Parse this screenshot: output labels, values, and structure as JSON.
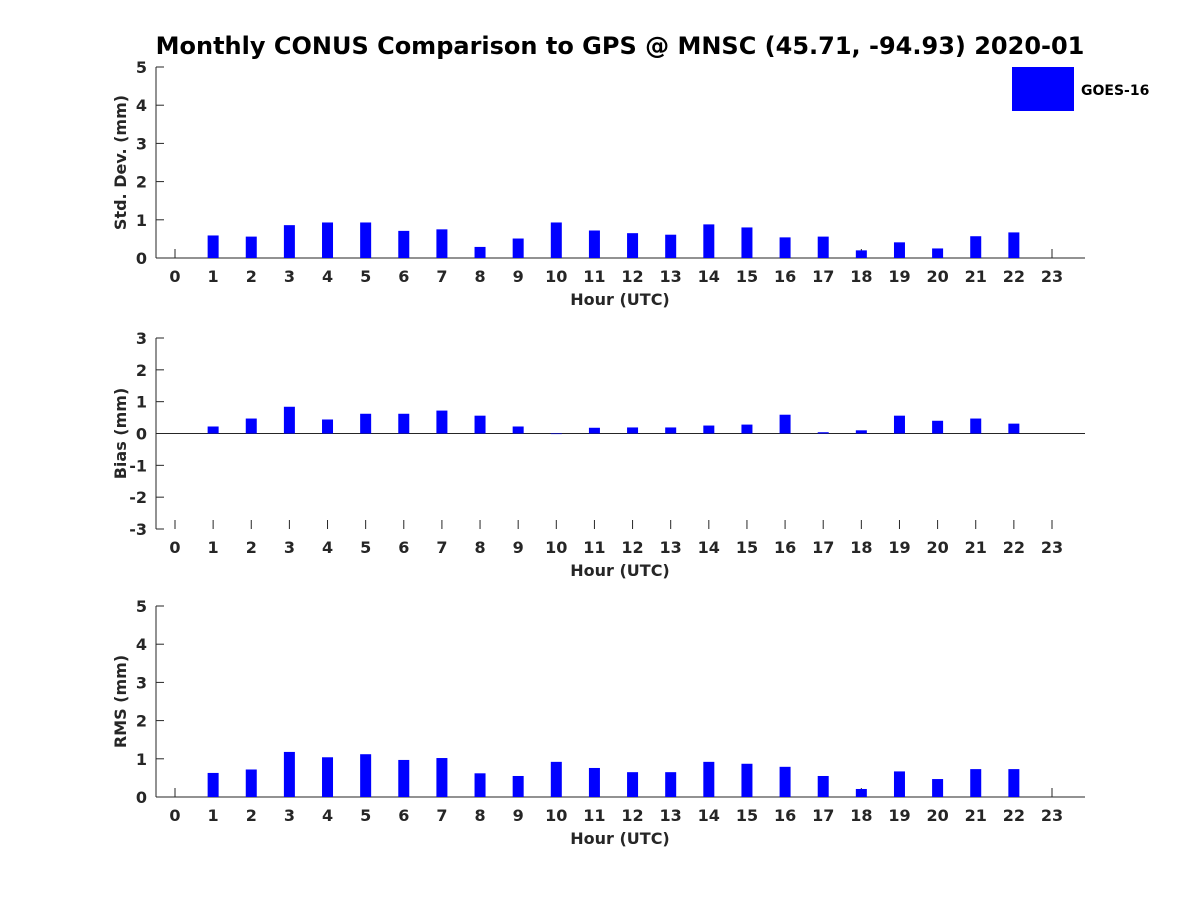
{
  "title": "Monthly CONUS Comparison to GPS @ MNSC (45.71, -94.93) 2020-01",
  "legend": {
    "label": "GOES-16",
    "color": "#0000ff"
  },
  "chart_data": [
    {
      "type": "bar",
      "name": "std",
      "series_name": "GOES-16",
      "xlabel": "Hour (UTC)",
      "ylabel": "Std. Dev. (mm)",
      "ylim": [
        0,
        5
      ],
      "yticks": [
        0,
        1,
        2,
        3,
        4,
        5
      ],
      "categories": [
        0,
        1,
        2,
        3,
        4,
        5,
        6,
        7,
        8,
        9,
        10,
        11,
        12,
        13,
        14,
        15,
        16,
        17,
        18,
        19,
        20,
        21,
        22,
        23
      ],
      "values": [
        null,
        0.59,
        0.56,
        0.86,
        0.93,
        0.93,
        0.71,
        0.75,
        0.29,
        0.51,
        0.93,
        0.72,
        0.65,
        0.61,
        0.88,
        0.8,
        0.54,
        0.56,
        0.2,
        0.41,
        0.25,
        0.57,
        0.67,
        null
      ]
    },
    {
      "type": "bar",
      "name": "bias",
      "series_name": "GOES-16",
      "xlabel": "Hour (UTC)",
      "ylabel": "Bias (mm)",
      "ylim": [
        -3,
        3
      ],
      "yticks": [
        -3,
        -2,
        -1,
        0,
        1,
        2,
        3
      ],
      "categories": [
        0,
        1,
        2,
        3,
        4,
        5,
        6,
        7,
        8,
        9,
        10,
        11,
        12,
        13,
        14,
        15,
        16,
        17,
        18,
        19,
        20,
        21,
        22,
        23
      ],
      "values": [
        null,
        0.22,
        0.47,
        0.84,
        0.44,
        0.62,
        0.62,
        0.72,
        0.56,
        0.22,
        0.0,
        0.18,
        0.19,
        0.19,
        0.25,
        0.28,
        0.59,
        0.04,
        0.1,
        0.56,
        0.4,
        0.47,
        0.31,
        null
      ]
    },
    {
      "type": "bar",
      "name": "rms",
      "series_name": "GOES-16",
      "xlabel": "Hour (UTC)",
      "ylabel": "RMS (mm)",
      "ylim": [
        0,
        5
      ],
      "yticks": [
        0,
        1,
        2,
        3,
        4,
        5
      ],
      "categories": [
        0,
        1,
        2,
        3,
        4,
        5,
        6,
        7,
        8,
        9,
        10,
        11,
        12,
        13,
        14,
        15,
        16,
        17,
        18,
        19,
        20,
        21,
        22,
        23
      ],
      "values": [
        null,
        0.63,
        0.72,
        1.18,
        1.04,
        1.12,
        0.97,
        1.02,
        0.62,
        0.55,
        0.92,
        0.76,
        0.65,
        0.65,
        0.92,
        0.87,
        0.79,
        0.55,
        0.21,
        0.67,
        0.47,
        0.73,
        0.73,
        null
      ]
    }
  ]
}
